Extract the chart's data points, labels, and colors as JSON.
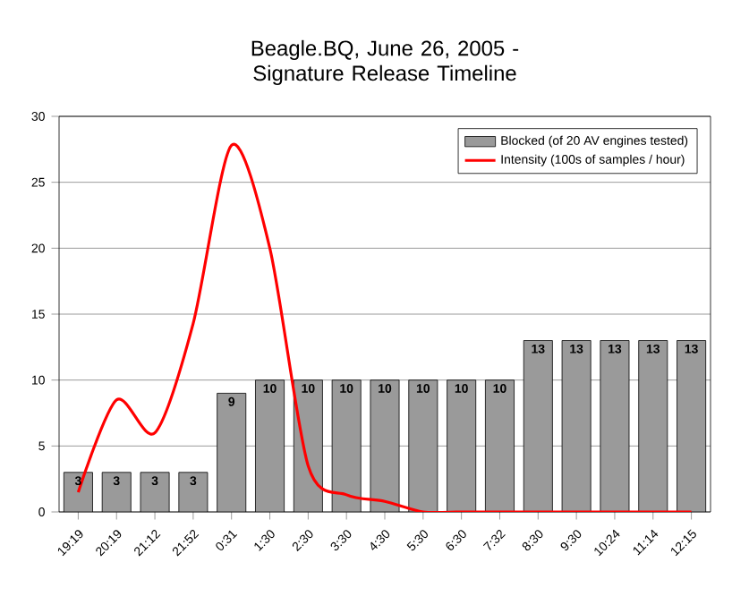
{
  "chart_data": {
    "type": "bar",
    "title": "Beagle.BQ, June 26, 2005 - Signature Release Timeline",
    "categories": [
      "19:19",
      "20:19",
      "21:12",
      "21:52",
      "0:31",
      "1:30",
      "2:30",
      "3:30",
      "4:30",
      "5:30",
      "6:30",
      "7:32",
      "8:30",
      "9:30",
      "10:24",
      "11:14",
      "12:15"
    ],
    "series": [
      {
        "name": "Blocked  (of 20 AV engines tested)",
        "color": "#9a9a9a",
        "values": [
          3,
          3,
          3,
          3,
          9,
          10,
          10,
          10,
          10,
          10,
          10,
          10,
          13,
          13,
          13,
          13,
          13
        ],
        "value_labels": [
          "3",
          "3",
          "3",
          "3",
          "9",
          "10",
          "10",
          "10",
          "10",
          "10",
          "10",
          "10",
          "13",
          "13",
          "13",
          "13",
          "13"
        ]
      },
      {
        "name": "Intensity (100s of samples / hour)",
        "type": "line",
        "color": "#ff0000",
        "values": [
          1.5,
          8.5,
          6,
          14.3,
          27.8,
          20,
          3.5,
          1.3,
          0.8,
          0,
          0,
          0,
          0,
          0,
          0,
          0,
          0
        ]
      }
    ],
    "ylim": [
      0,
      30
    ],
    "yticks": [
      0,
      5,
      10,
      15,
      20,
      25,
      30
    ],
    "grid": "y",
    "legend": "top right",
    "marker": "none"
  }
}
